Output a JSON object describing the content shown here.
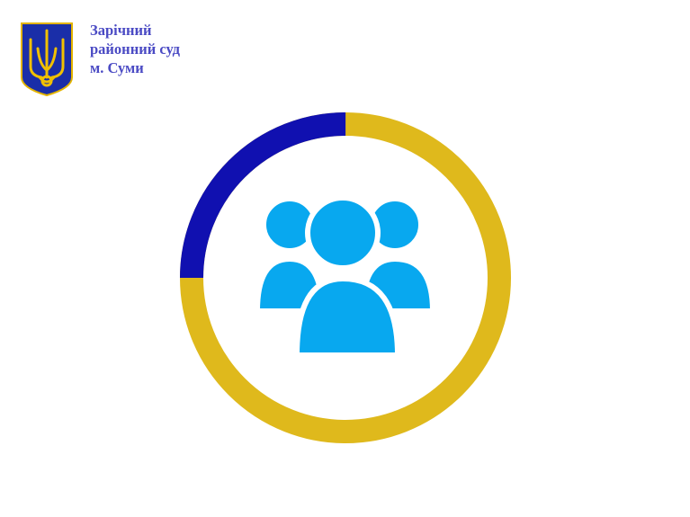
{
  "header": {
    "court_name_lines": [
      "Зарічний",
      "районний суд",
      "м. Суми"
    ],
    "logo_icon": "ukraine-coat-of-arms-icon"
  },
  "main": {
    "icon": "users-group-icon",
    "progress_percent": 25,
    "colors": {
      "progress": "#1010b0",
      "track": "#dfb91c",
      "icon": "#08a8ef",
      "text": "#4b4bc4"
    }
  }
}
